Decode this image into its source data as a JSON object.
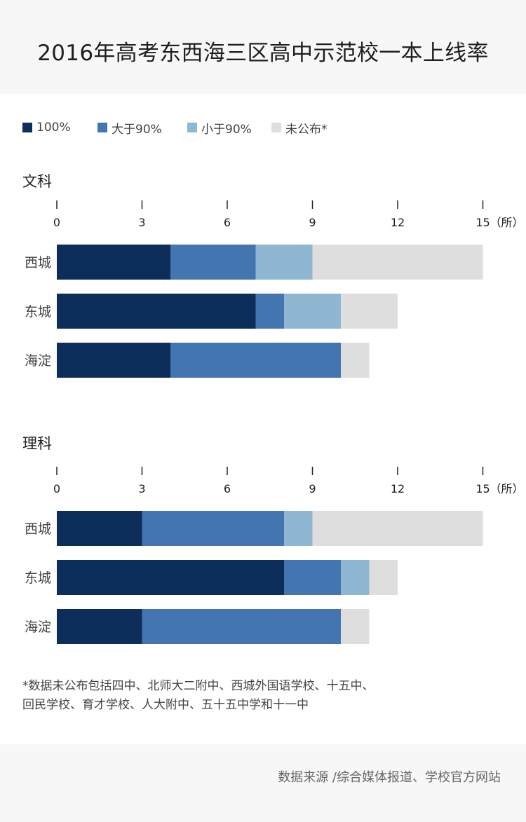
{
  "title": "2016年高考东西海三区高中示范校一本上线率",
  "legend": [
    {
      "label": "100%",
      "color": "#0d2d5a"
    },
    {
      "label": "大于90%",
      "color": "#4376b0"
    },
    {
      "label": "小于90%",
      "color": "#8fb7d2"
    },
    {
      "label": "未公布*",
      "color": "#dedede"
    }
  ],
  "footnote": {
    "line1": "*数据未公布包括四中、北师大二附中、西城外国语学校、十五中、",
    "line2": "回民学校、育才学校、人大附中、五十五中学和十一中"
  },
  "source": "数据来源 /综合媒体报道、学校官方网站",
  "chart_data": [
    {
      "type": "bar",
      "orientation": "horizontal",
      "stacked": true,
      "title": "文科",
      "unit": "（所）",
      "xlim": [
        0,
        15
      ],
      "ticks": [
        0,
        3,
        6,
        9,
        12,
        15
      ],
      "categories": [
        "西城",
        "东城",
        "海淀"
      ],
      "series": [
        {
          "name": "100%",
          "values": [
            4,
            7,
            4
          ]
        },
        {
          "name": "大于90%",
          "values": [
            3,
            1,
            6
          ]
        },
        {
          "name": "小于90%",
          "values": [
            2,
            2,
            0
          ]
        },
        {
          "name": "未公布*",
          "values": [
            6,
            2,
            1
          ]
        }
      ]
    },
    {
      "type": "bar",
      "orientation": "horizontal",
      "stacked": true,
      "title": "理科",
      "unit": "（所）",
      "xlim": [
        0,
        15
      ],
      "ticks": [
        0,
        3,
        6,
        9,
        12,
        15
      ],
      "categories": [
        "西城",
        "东城",
        "海淀"
      ],
      "series": [
        {
          "name": "100%",
          "values": [
            3,
            8,
            3
          ]
        },
        {
          "name": "大于90%",
          "values": [
            5,
            2,
            7
          ]
        },
        {
          "name": "小于90%",
          "values": [
            1,
            1,
            0
          ]
        },
        {
          "name": "未公布*",
          "values": [
            6,
            1,
            1
          ]
        }
      ]
    }
  ]
}
